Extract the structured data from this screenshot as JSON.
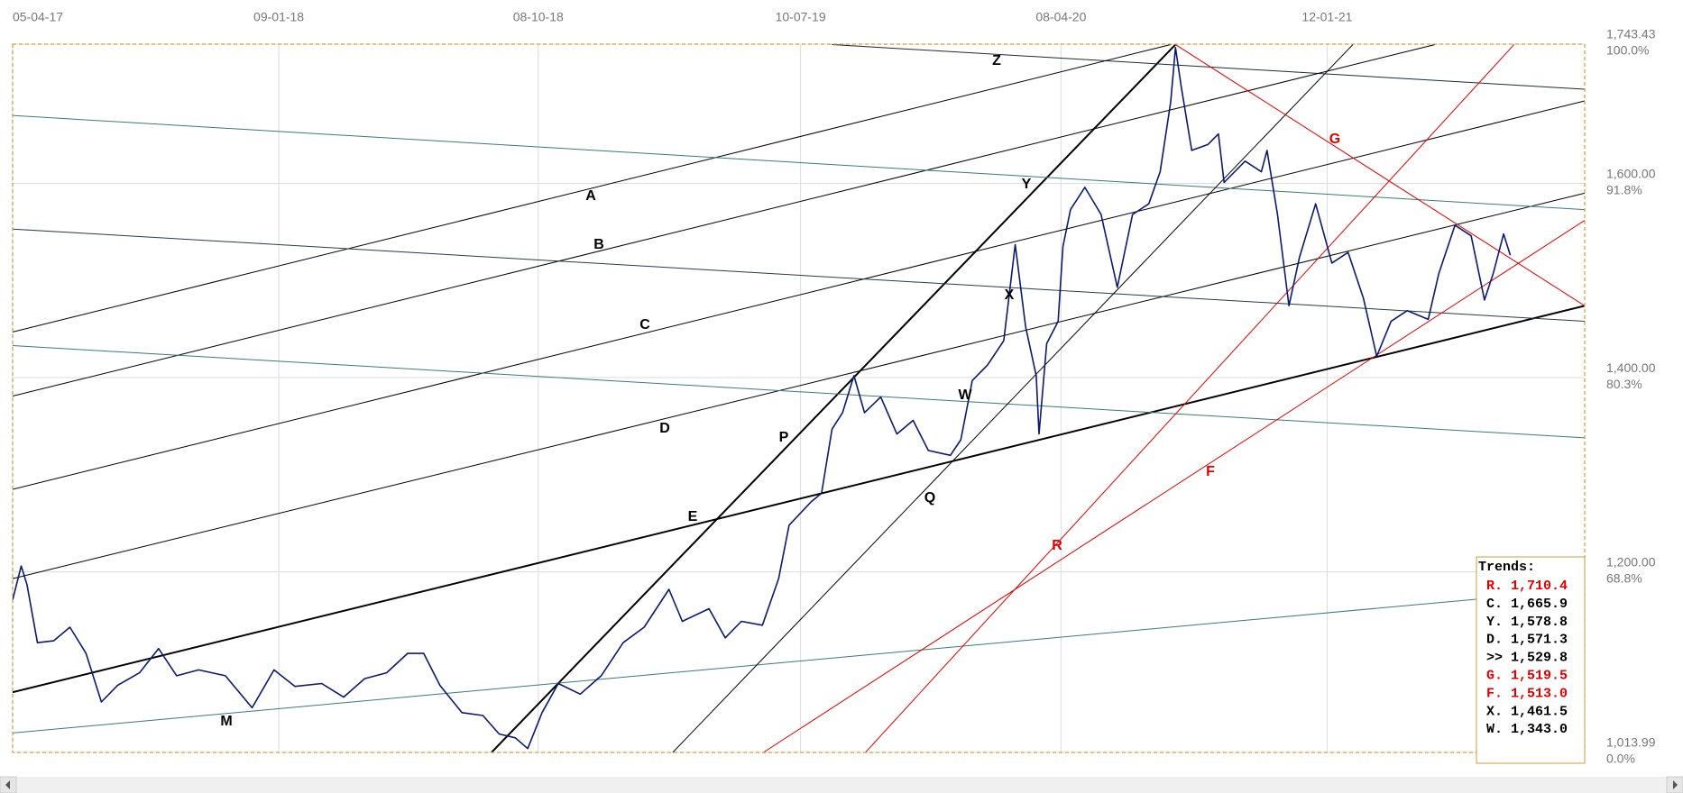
{
  "chart_data": {
    "type": "line",
    "xlim": [
      "2017-04-05",
      "2021-10-09"
    ],
    "xticks": [
      {
        "value": "2017-04-05",
        "label": "05-04-17"
      },
      {
        "value": "2018-01-09",
        "label": "09-01-18"
      },
      {
        "value": "2018-10-08",
        "label": "08-10-18"
      },
      {
        "value": "2019-07-10",
        "label": "10-07-19"
      },
      {
        "value": "2020-04-08",
        "label": "08-04-20"
      },
      {
        "value": "2021-01-12",
        "label": "12-01-21"
      }
    ],
    "ylim": [
      1013.99,
      1743.43
    ],
    "yticks": [
      {
        "value": 1013.99,
        "label": "1,013.99",
        "percent": "0.0%"
      },
      {
        "value": 1200,
        "label": "1,200.00",
        "percent": "68.8%"
      },
      {
        "value": 1400,
        "label": "1,400.00",
        "percent": "80.3%"
      },
      {
        "value": 1600,
        "label": "1,600.00",
        "percent": "91.8%"
      },
      {
        "value": 1743.43,
        "label": "1,743.43",
        "percent": "100.0%"
      }
    ],
    "grid": true,
    "series": [
      {
        "color": "#0b1a6e",
        "x": [
          "2017-04-05",
          "2017-04-14",
          "2017-04-20",
          "2017-05-01",
          "2017-05-18",
          "2017-06-04",
          "2017-06-21",
          "2017-07-07",
          "2017-07-24",
          "2017-08-16",
          "2017-09-05",
          "2017-09-24",
          "2017-10-17",
          "2017-11-14",
          "2017-12-12",
          "2018-01-04",
          "2018-01-26",
          "2018-02-23",
          "2018-03-18",
          "2018-04-09",
          "2018-05-02",
          "2018-05-24",
          "2018-06-10",
          "2018-06-27",
          "2018-07-20",
          "2018-08-11",
          "2018-08-28",
          "2018-09-14",
          "2018-09-27",
          "2018-10-12",
          "2018-10-29",
          "2018-11-21",
          "2018-12-13",
          "2019-01-05",
          "2019-01-27",
          "2019-02-22",
          "2019-03-08",
          "2019-04-05",
          "2019-04-22",
          "2019-05-09",
          "2019-05-31",
          "2019-06-17",
          "2019-06-28",
          "2019-07-21",
          "2019-08-01",
          "2019-08-12",
          "2019-08-23",
          "2019-09-04",
          "2019-09-15",
          "2019-10-02",
          "2019-10-19",
          "2019-11-05",
          "2019-11-21",
          "2019-12-14",
          "2019-12-25",
          "2020-01-06",
          "2020-01-22",
          "2020-02-08",
          "2020-02-20",
          "2020-03-02",
          "2020-03-13",
          "2020-03-16",
          "2020-03-24",
          "2020-04-05",
          "2020-04-10",
          "2020-04-18",
          "2020-05-03",
          "2020-05-20",
          "2020-06-06",
          "2020-06-22",
          "2020-07-09",
          "2020-07-21",
          "2020-08-01",
          "2020-08-06",
          "2020-08-12",
          "2020-08-23",
          "2020-09-09",
          "2020-09-20",
          "2020-09-26",
          "2020-10-18",
          "2020-11-04",
          "2020-11-10",
          "2020-11-21",
          "2020-12-03",
          "2020-12-14",
          "2020-12-31",
          "2021-01-17",
          "2021-02-03",
          "2021-02-19",
          "2021-03-05",
          "2021-03-20",
          "2021-04-06",
          "2021-04-28",
          "2021-05-09",
          "2021-05-26",
          "2021-06-12",
          "2021-06-26",
          "2021-07-05",
          "2021-07-16",
          "2021-07-23"
        ],
        "values": [
          1171,
          1206,
          1187,
          1127,
          1129,
          1143,
          1116,
          1066,
          1083,
          1096,
          1121,
          1093,
          1099,
          1093,
          1060,
          1099,
          1082,
          1085,
          1071,
          1090,
          1096,
          1116,
          1116,
          1083,
          1055,
          1052,
          1033,
          1029,
          1018,
          1055,
          1085,
          1074,
          1093,
          1127,
          1143,
          1182,
          1149,
          1162,
          1132,
          1149,
          1145,
          1193,
          1248,
          1272,
          1281,
          1347,
          1364,
          1402,
          1364,
          1380,
          1342,
          1356,
          1325,
          1320,
          1336,
          1397,
          1413,
          1438,
          1537,
          1452,
          1402,
          1342,
          1435,
          1458,
          1535,
          1573,
          1596,
          1568,
          1493,
          1568,
          1579,
          1612,
          1684,
          1740,
          1700,
          1634,
          1640,
          1651,
          1601,
          1623,
          1612,
          1634,
          1568,
          1474,
          1524,
          1579,
          1518,
          1529,
          1482,
          1422,
          1458,
          1469,
          1460,
          1507,
          1557,
          1546,
          1480,
          1507,
          1548,
          1526
        ]
      }
    ],
    "trendlines": [
      {
        "label": "E",
        "color": "#000000",
        "width": 2,
        "points": [
          [
            "2017-04-05",
            1076
          ],
          [
            "2021-10-09",
            1474
          ]
        ]
      },
      {
        "label": "P",
        "color": "#000000",
        "width": 2,
        "points": [
          [
            "2018-08-20",
            1014
          ],
          [
            "2020-08-06",
            1743
          ]
        ]
      },
      {
        "label": "Z",
        "color": "#1e2a3a",
        "width": 1,
        "points": [
          [
            "2019-08-12",
            1743
          ],
          [
            "2021-10-09",
            1697
          ]
        ]
      },
      {
        "label": "A",
        "color": "#000000",
        "width": 1,
        "points": [
          [
            "2017-04-05",
            1447
          ],
          [
            "2020-08-01",
            1743
          ]
        ]
      },
      {
        "label": "B",
        "color": "#000000",
        "width": 1,
        "points": [
          [
            "2017-04-05",
            1381
          ],
          [
            "2021-05-05",
            1743
          ]
        ]
      },
      {
        "label": "C",
        "color": "#000000",
        "width": 1,
        "points": [
          [
            "2017-04-05",
            1285
          ],
          [
            "2021-10-09",
            1685
          ]
        ]
      },
      {
        "label": "D",
        "color": "#000000",
        "width": 1,
        "points": [
          [
            "2017-04-05",
            1193
          ],
          [
            "2021-10-09",
            1590
          ]
        ]
      },
      {
        "color": "#3d7a74",
        "width": 1,
        "points": [
          [
            "2017-04-05",
            1670
          ],
          [
            "2021-10-09",
            1573
          ]
        ]
      },
      {
        "color": "#2b3a4a",
        "width": 1,
        "points": [
          [
            "2017-04-05",
            1553
          ],
          [
            "2021-10-09",
            1458
          ]
        ]
      },
      {
        "color": "#3d7a74",
        "width": 1,
        "points": [
          [
            "2017-04-05",
            1433
          ],
          [
            "2021-10-09",
            1338
          ]
        ]
      },
      {
        "label": "M",
        "color": "#3d7a74",
        "width": 1,
        "points": [
          [
            "2017-04-05",
            1034
          ],
          [
            "2021-10-09",
            1182
          ]
        ]
      },
      {
        "label": "Q",
        "color": "#000000",
        "width": 1,
        "points": [
          [
            "2019-02-26",
            1014
          ],
          [
            "2021-02-08",
            1743
          ]
        ]
      },
      {
        "label": "R",
        "color": "#e00000",
        "width": 1,
        "points": [
          [
            "2019-09-16",
            1014
          ],
          [
            "2021-07-27",
            1743
          ]
        ]
      },
      {
        "label": "F",
        "color": "#e00000",
        "width": 1,
        "points": [
          [
            "2019-06-01",
            1014
          ],
          [
            "2021-10-09",
            1562
          ]
        ]
      },
      {
        "label": "G",
        "color": "#e00000",
        "width": 1,
        "points": [
          [
            "2020-08-06",
            1743
          ],
          [
            "2021-10-09",
            1474
          ]
        ]
      }
    ],
    "annotations": [
      "Y",
      "X",
      "W"
    ],
    "trends": {
      "title": "Trends:",
      "rows": [
        {
          "text": "R. 1,710.4",
          "color": "#e00000"
        },
        {
          "text": "C. 1,665.9",
          "color": "#000000"
        },
        {
          "text": "Y. 1,578.8",
          "color": "#000000"
        },
        {
          "text": "D. 1,571.3",
          "color": "#000000"
        },
        {
          "text": ">> 1,529.8",
          "color": "#000000"
        },
        {
          "text": "G. 1,519.5",
          "color": "#e00000"
        },
        {
          "text": "F. 1,513.0",
          "color": "#e00000"
        },
        {
          "text": "X. 1,461.5",
          "color": "#000000"
        },
        {
          "text": "W. 1,343.0",
          "color": "#000000"
        }
      ]
    }
  }
}
